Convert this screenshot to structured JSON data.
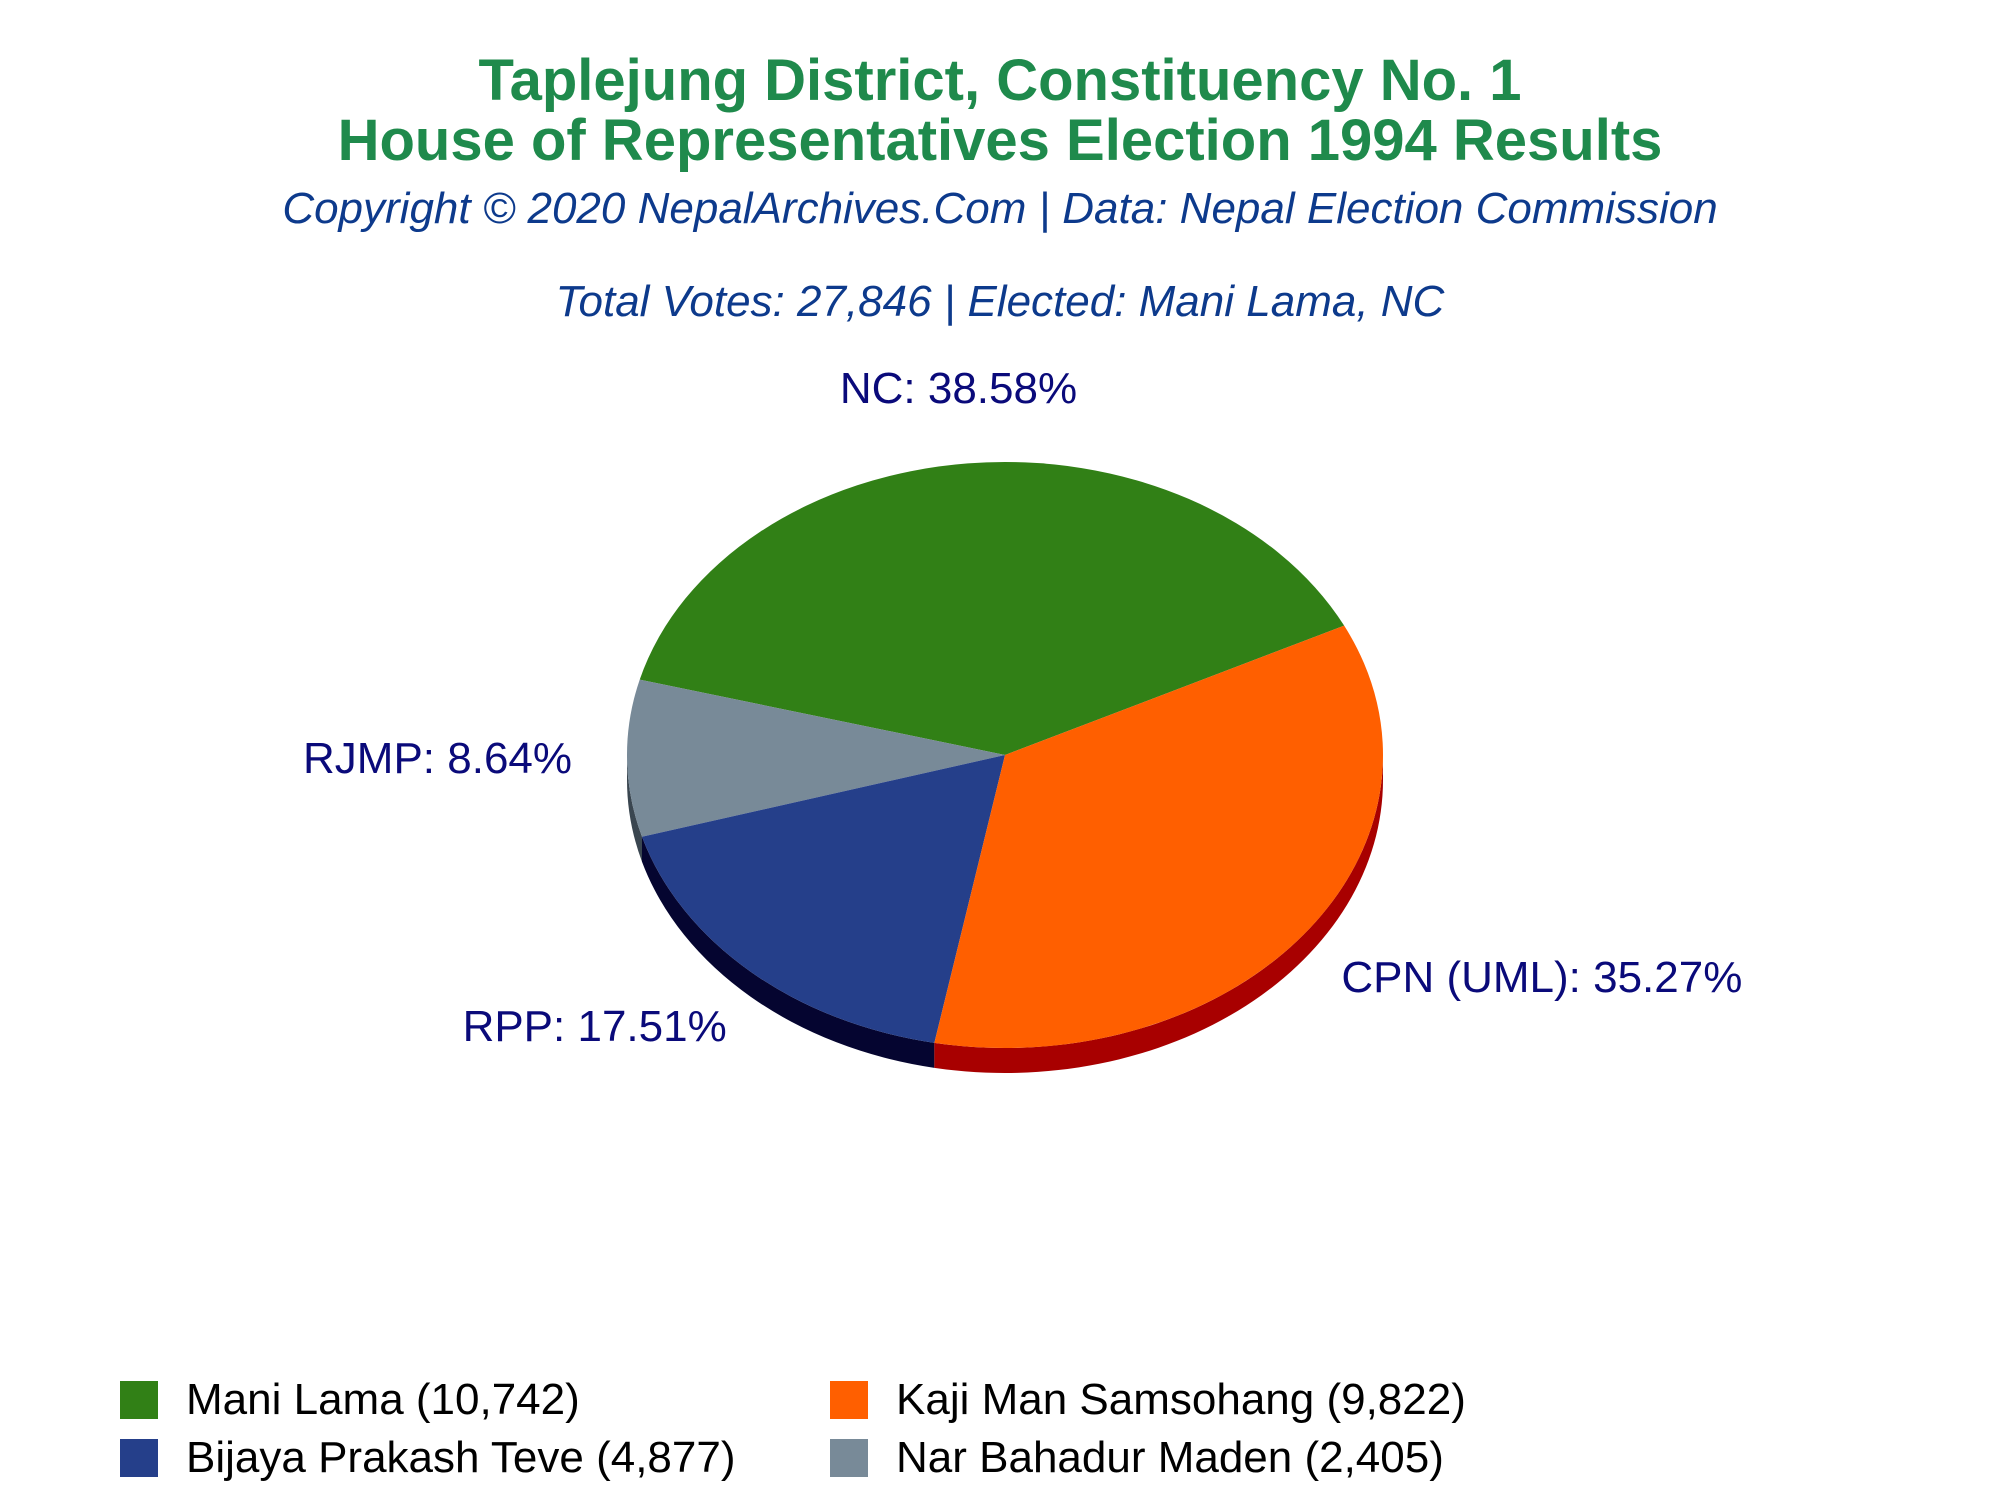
{
  "header": {
    "title_line1": "Taplejung District, Constituency No. 1",
    "title_line2": "House of Representatives Election 1994 Results",
    "copyright": "Copyright © 2020 NepalArchives.Com | Data: Nepal Election Commission",
    "summary": "Total Votes: 27,846 | Elected: Mani Lama, NC"
  },
  "chart_data": {
    "type": "pie",
    "total_votes": 27846,
    "slices": [
      {
        "party": "NC",
        "label": "NC: 38.58%",
        "percent": 38.58,
        "candidate": "Mani Lama",
        "votes": 10742,
        "legend": "Mani Lama (10,742)",
        "color": "#318016",
        "side_color": "#1a4a0b"
      },
      {
        "party": "RJMP",
        "label": "RJMP: 8.64%",
        "percent": 8.64,
        "candidate": "Nar Bahadur Maden",
        "votes": 2405,
        "legend": "Nar Bahadur Maden (2,405)",
        "color": "#788a98",
        "side_color": "#3a4650"
      },
      {
        "party": "RPP",
        "label": "RPP: 17.51%",
        "percent": 17.51,
        "candidate": "Bijaya Prakash Teve",
        "votes": 4877,
        "legend": "Bijaya Prakash Teve (4,877)",
        "color": "#253f8a",
        "side_color": "#050530"
      },
      {
        "party": "CPN (UML)",
        "label": "CPN (UML): 35.27%",
        "percent": 35.27,
        "candidate": "Kaji Man Samsohang",
        "votes": 9822,
        "legend": "Kaji Man Samsohang (9,822)",
        "color": "#ff5f00",
        "side_color": "#a80000"
      }
    ],
    "legend_order": [
      "NC",
      "CPN (UML)",
      "RPP",
      "RJMP"
    ],
    "legend_placement": "bottom"
  }
}
